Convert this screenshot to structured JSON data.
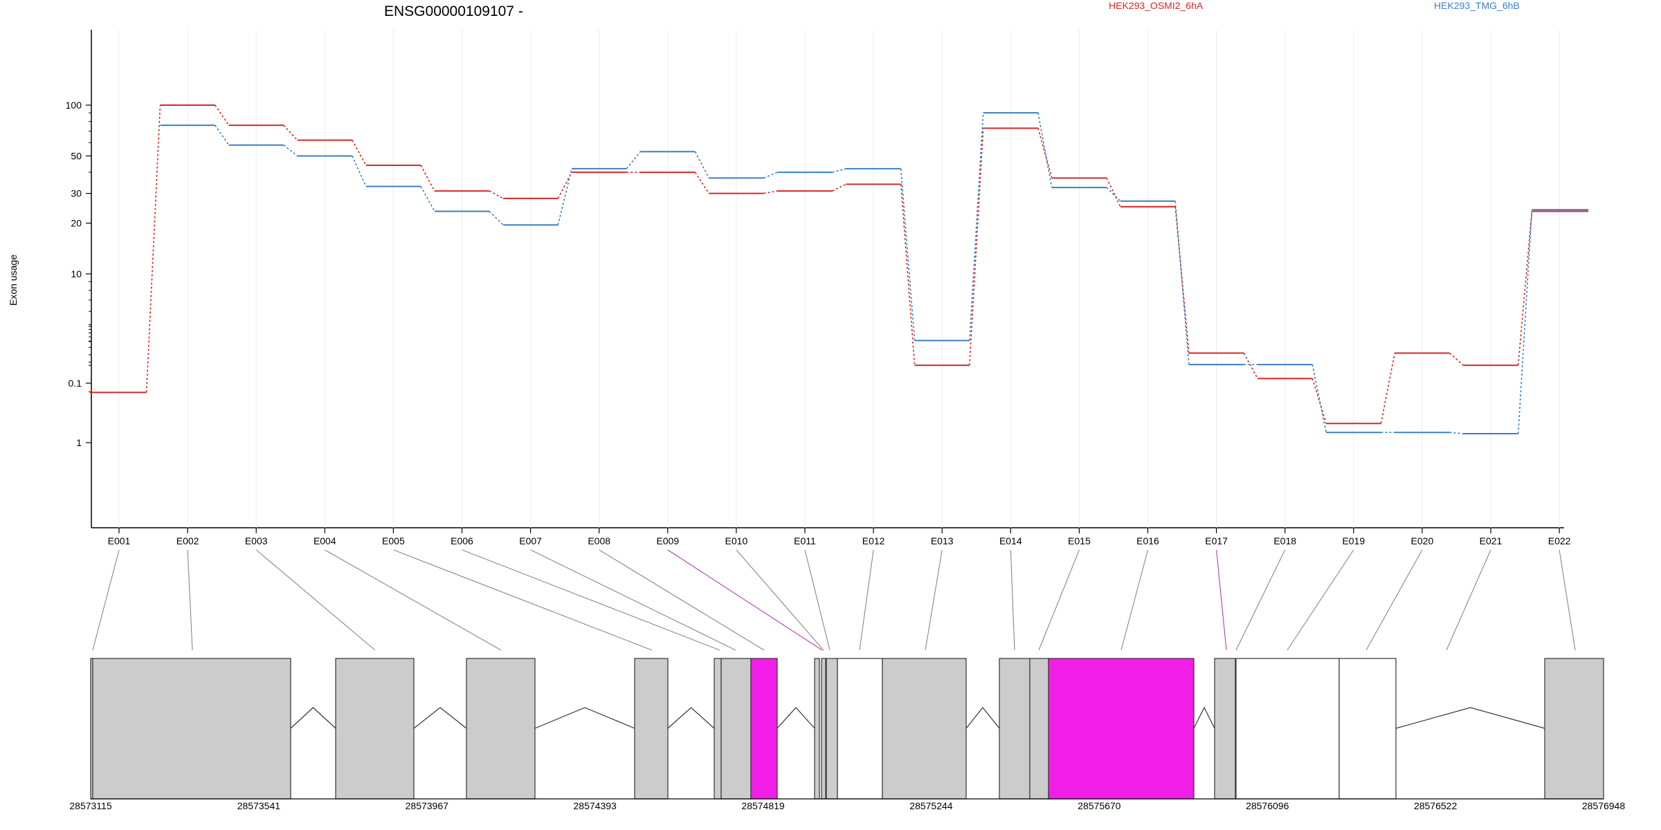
{
  "chart_data": {
    "type": "line",
    "title": "ENSG00000109107 -",
    "ylabel": "Exon usage",
    "yscale": "log",
    "yticks": [
      0.1,
      1,
      10,
      20,
      30,
      50,
      100
    ],
    "ytick_labels": [
      "0.1",
      "1",
      "10",
      "20",
      "30",
      "50",
      "100"
    ],
    "categories": [
      "E001",
      "E002",
      "E003",
      "E004",
      "E005",
      "E006",
      "E007",
      "E008",
      "E009",
      "E010",
      "E011",
      "E012",
      "E013",
      "E014",
      "E015",
      "E016",
      "E017",
      "E018",
      "E019",
      "E020",
      "E021",
      "E022"
    ],
    "series": [
      {
        "name": "HEK293_OSMI2_6hA",
        "color": "#d62728",
        "values": [
          0.07,
          100,
          76,
          62,
          44,
          31,
          28,
          40,
          40,
          30,
          31,
          34,
          0.2,
          73,
          37,
          25,
          0.32,
          2.4,
          1.3,
          0.32,
          0.2,
          23.5
        ]
      },
      {
        "name": "HEK293_TMG_6hB",
        "color": "#3a7fc4",
        "values": [
          null,
          76,
          58,
          50,
          33,
          23.5,
          19.5,
          42,
          53,
          37,
          40,
          42,
          0.52,
          90,
          32.5,
          27,
          2.9,
          2.9,
          1.15,
          1.15,
          1.13,
          24
        ]
      }
    ],
    "highlight_color": "#f01ee6",
    "highlighted_exons": [
      "E009",
      "E017"
    ],
    "genomic_axis_labels": [
      "28573115",
      "28573541",
      "28573967",
      "28574393",
      "28574819",
      "28575244",
      "28575670",
      "28576096",
      "28576522",
      "28576948"
    ]
  }
}
